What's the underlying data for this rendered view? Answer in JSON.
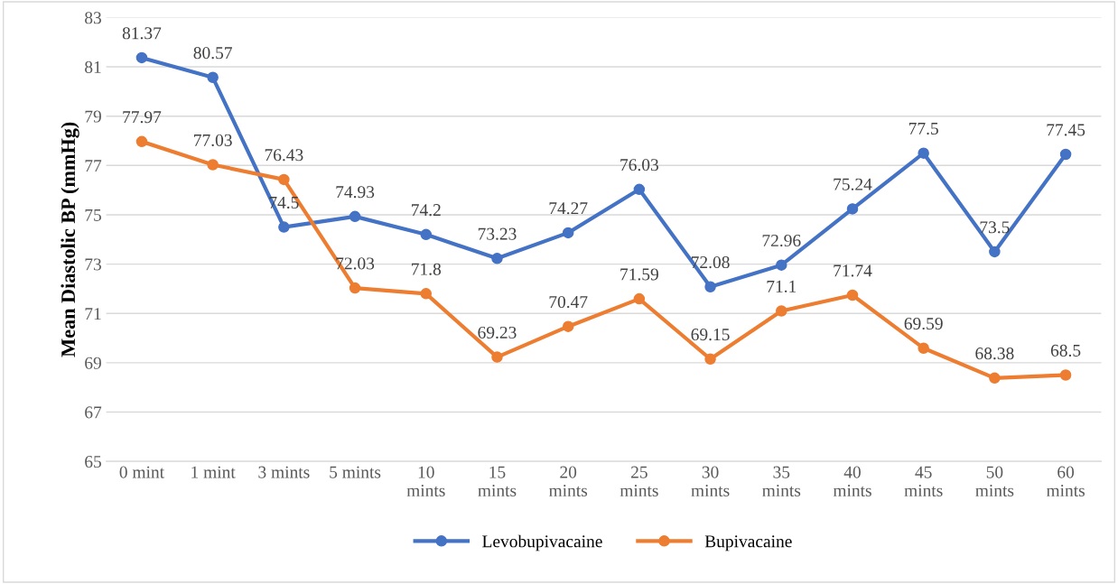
{
  "chart_data": {
    "type": "line",
    "ylabel": "Mean Diastolic BP (mmHg)",
    "categories": [
      "0 mint",
      "1 mint",
      "3 mints",
      "5 mints",
      "10\nmints",
      "15\nmints",
      "20\nmints",
      "25\nmints",
      "30\nmints",
      "35\nmints",
      "40\nmints",
      "45\nmints",
      "50\nmints",
      "60\nmints"
    ],
    "series": [
      {
        "name": "Levobupivacaine",
        "color": "#4472c4",
        "values": [
          81.37,
          80.57,
          74.5,
          74.93,
          74.2,
          73.23,
          74.27,
          76.03,
          72.08,
          72.96,
          75.24,
          77.5,
          73.5,
          77.45
        ]
      },
      {
        "name": "Bupivacaine",
        "color": "#ed7d31",
        "values": [
          77.97,
          77.03,
          76.43,
          72.03,
          71.8,
          69.23,
          70.47,
          71.59,
          69.15,
          71.1,
          71.74,
          69.59,
          68.38,
          68.5
        ]
      }
    ],
    "ylim": [
      65,
      83
    ],
    "yticks": [
      65,
      67,
      69,
      71,
      73,
      75,
      77,
      79,
      81,
      83
    ],
    "grid": "y",
    "legend": "bottom",
    "marker": "circle",
    "line_style": "solid",
    "data_labels": true
  }
}
